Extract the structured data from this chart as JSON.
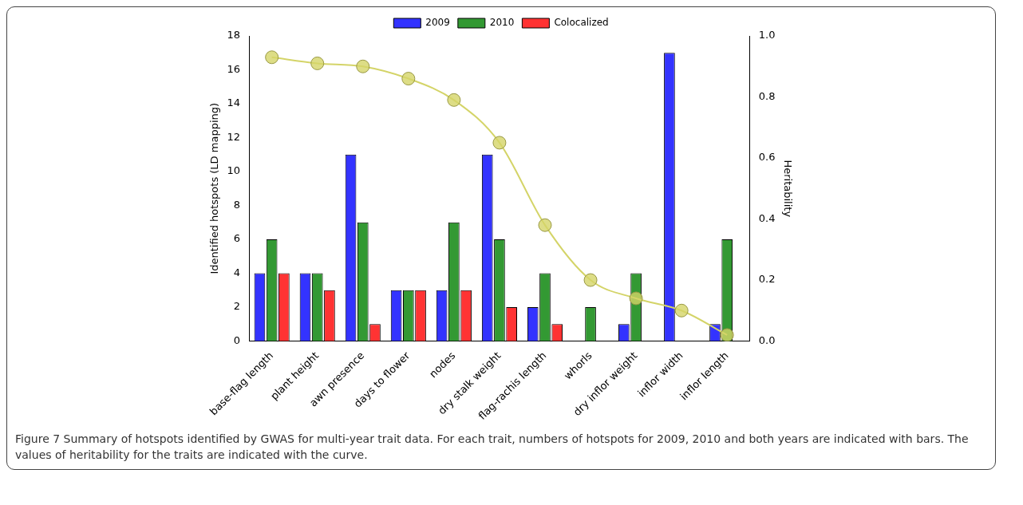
{
  "chart_data": {
    "type": "bar",
    "categories": [
      "base-flag length",
      "plant height",
      "awn presence",
      "days to flower",
      "nodes",
      "dry stalk weight",
      "flag-rachis length",
      "whorls",
      "dry inflor weight",
      "inflor width",
      "inflor length"
    ],
    "ylabel": "Identified hotspots (LD mapping)",
    "y2label": "Heritability",
    "ylim": [
      0,
      18
    ],
    "yticks": [
      0,
      2,
      4,
      6,
      8,
      10,
      12,
      14,
      16,
      18
    ],
    "y2lim": [
      0,
      1
    ],
    "y2ticks": [
      {
        "value": 0,
        "label": "0.0"
      },
      {
        "value": 0.2,
        "label": "0.2"
      },
      {
        "value": 0.4,
        "label": "0.4"
      },
      {
        "value": 0.6,
        "label": "0.6"
      },
      {
        "value": 0.8,
        "label": "0.8"
      },
      {
        "value": 1,
        "label": "1.0"
      }
    ],
    "legend": "top",
    "grid": false,
    "series": [
      {
        "name": "2009",
        "color": "#3333ff",
        "values": [
          4,
          4,
          11,
          3,
          3,
          11,
          2,
          0,
          1,
          17,
          1
        ]
      },
      {
        "name": "2010",
        "color": "#339933",
        "values": [
          6,
          4,
          7,
          3,
          7,
          6,
          4,
          2,
          4,
          0,
          6
        ]
      },
      {
        "name": "Colocalized",
        "color": "#ff3333",
        "values": [
          4,
          3,
          1,
          3,
          3,
          2,
          1,
          0,
          0,
          0,
          0
        ]
      },
      {
        "type": "line",
        "axis": "y2",
        "color": "#d4d468",
        "marker": "circle",
        "values": [
          0.93,
          0.91,
          0.9,
          0.86,
          0.79,
          0.65,
          0.38,
          0.2,
          0.14,
          0.1,
          0.02
        ]
      }
    ],
    "annotations": [
      "Figure 7 Summary of hotspots identified by GWAS for multi-year trait data. For each trait, numbers of hotspots for 2009, 2010 and both years are indicated with bars. The values of heritability for the traits are indicated with the curve."
    ]
  }
}
